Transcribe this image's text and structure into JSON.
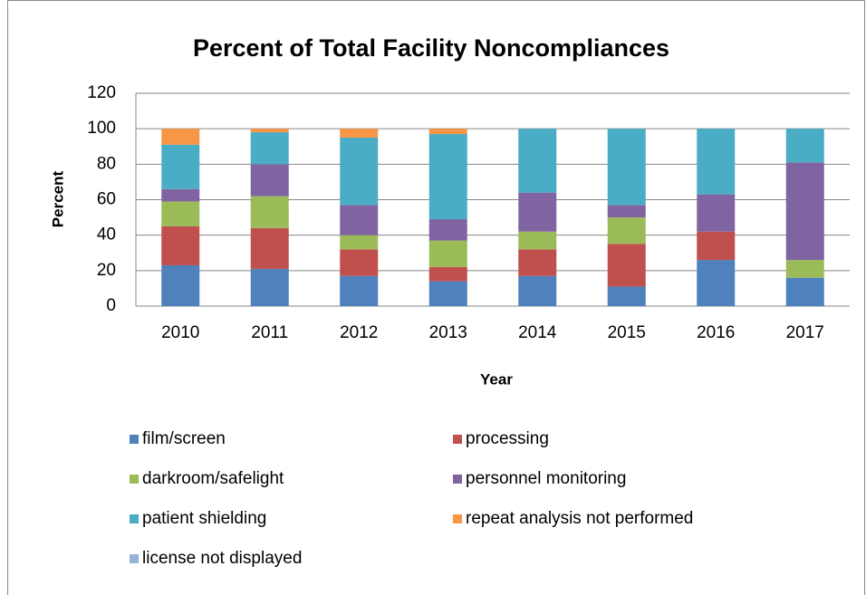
{
  "chart_data": {
    "type": "stacked-bar",
    "title": "Percent  of Total Facility Noncompliances",
    "x_label": "Year",
    "y_label": "Percent",
    "categories": [
      "2010",
      "2011",
      "2012",
      "2013",
      "2014",
      "2015",
      "2016",
      "2017"
    ],
    "series": [
      {
        "name": "film/screen",
        "color": "#4f81bd",
        "values": [
          23,
          21,
          17,
          14,
          17,
          11,
          26,
          16
        ]
      },
      {
        "name": "processing",
        "color": "#c0504d",
        "values": [
          22,
          23,
          15,
          8,
          15,
          24,
          16,
          0
        ]
      },
      {
        "name": "darkroom/safelight",
        "color": "#9bbb59",
        "values": [
          14,
          18,
          8,
          15,
          10,
          15,
          0,
          10
        ]
      },
      {
        "name": "personnel monitoring",
        "color": "#8064a2",
        "values": [
          7,
          18,
          17,
          12,
          22,
          7,
          21,
          55
        ]
      },
      {
        "name": "patient shielding",
        "color": "#4bacc6",
        "values": [
          25,
          18,
          38,
          48,
          36,
          43,
          37,
          19
        ]
      },
      {
        "name": "repeat analysis not performed",
        "color": "#f79646",
        "values": [
          9,
          2,
          5,
          3,
          0,
          0,
          0,
          0
        ]
      },
      {
        "name": "license not displayed",
        "color": "#95b3d7",
        "values": [
          0,
          0,
          0,
          0,
          0,
          0,
          0,
          0
        ]
      }
    ],
    "ylim": [
      0,
      120
    ],
    "yticks": [
      0,
      20,
      40,
      60,
      80,
      100,
      120
    ],
    "grid": true
  }
}
